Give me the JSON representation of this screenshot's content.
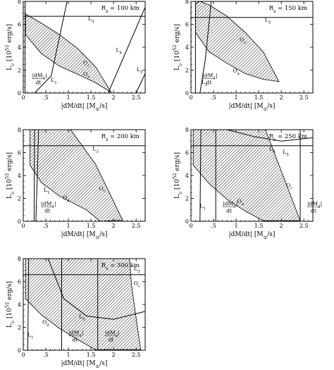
{
  "figure": {
    "ylabel": "L_ν [10^52 erg/s]",
    "xlabel": "|dM/dt| [M_⊙/s]"
  },
  "chart_data": [
    {
      "type": "area",
      "panel": "Rs=100km",
      "radius_label": "R_s = 100 km",
      "xlim": [
        0,
        2.7
      ],
      "ylim": [
        0,
        8
      ],
      "xticks": [
        0,
        0.5,
        1,
        1.5,
        2,
        2.5
      ],
      "xtick_labels": [
        "0",
        ".5",
        "1",
        "1.5",
        "2",
        "2.5"
      ],
      "yticks": [
        0,
        2,
        4,
        6,
        8
      ],
      "ytick_labels": [
        "0",
        "2",
        "4",
        "6",
        "8"
      ],
      "xlabel": "|dM/dt| [M_⊙/s]",
      "ylabel": "L_ν [10^52 erg/s]",
      "hatched_region": [
        [
          0.05,
          6.9
        ],
        [
          0.4,
          6.1
        ],
        [
          0.8,
          5.1
        ],
        [
          1.2,
          3.9
        ],
        [
          1.6,
          2.3
        ],
        [
          1.95,
          0.05
        ],
        [
          1.6,
          0.9
        ],
        [
          1.2,
          1.65
        ],
        [
          0.8,
          2.35
        ],
        [
          0.4,
          3.45
        ],
        [
          0.05,
          5.1
        ]
      ],
      "curves": [
        {
          "label": "L_3",
          "points": [
            [
              0,
              6.7
            ],
            [
              2.7,
              6.7
            ]
          ]
        },
        {
          "label": "L_1",
          "points": [
            [
              0.25,
              0
            ],
            [
              0.62,
              1.5
            ],
            [
              0.97,
              8
            ]
          ]
        },
        {
          "label": "L_4",
          "points": [
            [
              1.88,
              0
            ],
            [
              2.7,
              7.5
            ]
          ]
        },
        {
          "label": "L_5",
          "points": [
            [
              2.5,
              0
            ],
            [
              2.7,
              1.7
            ]
          ]
        },
        {
          "label": "|dM_1|/dt",
          "points": [
            [
              0.04,
              0
            ],
            [
              0.04,
              8
            ]
          ]
        }
      ],
      "labels": [
        {
          "text": "O_c",
          "x": 1.4,
          "y": 2.5
        },
        {
          "text": "O_a",
          "x": 1.4,
          "y": 1.5
        },
        {
          "text": "L_3",
          "x": 1.5,
          "y": 6.35
        },
        {
          "text": "L_1",
          "x": 0.68,
          "y": 1.0
        },
        {
          "text": "L_4",
          "x": 2.12,
          "y": 3.6
        },
        {
          "text": "L_5",
          "x": 2.58,
          "y": 1.9
        }
      ]
    },
    {
      "type": "area",
      "panel": "Rs=150km",
      "radius_label": "R_s = 150 km",
      "xlim": [
        0,
        2.7
      ],
      "ylim": [
        0,
        8
      ],
      "xticks": [
        0,
        0.5,
        1,
        1.5,
        2,
        2.5
      ],
      "xtick_labels": [
        "0",
        ".5",
        "1",
        "1.5",
        "2",
        "2.5"
      ],
      "yticks": [
        0,
        2,
        4,
        6,
        8
      ],
      "ytick_labels": [
        "0",
        "2",
        "4",
        "6",
        "8"
      ],
      "xlabel": "|dM/dt| [M_⊙/s]",
      "ylabel": "L_ν [10^52 erg/s]",
      "hatched_region": [
        [
          0.1,
          7.8
        ],
        [
          0.2,
          8
        ],
        [
          0.4,
          7.7
        ],
        [
          0.8,
          6.7
        ],
        [
          1.2,
          5.3
        ],
        [
          1.6,
          3.6
        ],
        [
          1.95,
          1.0
        ],
        [
          1.6,
          1.2
        ],
        [
          1.2,
          1.7
        ],
        [
          0.8,
          2.6
        ],
        [
          0.4,
          3.6
        ],
        [
          0.1,
          5.3
        ]
      ],
      "curves": [
        {
          "label": "L_3",
          "points": [
            [
              0,
              6.6
            ],
            [
              2.7,
              6.6
            ]
          ]
        },
        {
          "label": "L_1",
          "points": [
            [
              0.2,
              0
            ],
            [
              0.32,
              3
            ],
            [
              0.45,
              8
            ]
          ]
        },
        {
          "label": "|dM_1|/dt",
          "points": [
            [
              0.1,
              0
            ],
            [
              0.1,
              8
            ]
          ]
        }
      ],
      "labels": [
        {
          "text": "O_c",
          "x": 1.15,
          "y": 4.5
        },
        {
          "text": "O_a",
          "x": 1.0,
          "y": 1.8
        },
        {
          "text": "L_3",
          "x": 1.7,
          "y": 6.25
        },
        {
          "text": "L_1",
          "x": 0.3,
          "y": 0.8
        }
      ]
    },
    {
      "type": "area",
      "panel": "Rs=200km",
      "radius_label": "R_s = 200 km",
      "xlim": [
        0,
        2.7
      ],
      "ylim": [
        0,
        8
      ],
      "xticks": [
        0,
        0.5,
        1,
        1.5,
        2,
        2.5
      ],
      "xtick_labels": [
        "0",
        ".5",
        "1",
        "1.5",
        "2",
        "2.5"
      ],
      "yticks": [
        0,
        2,
        4,
        6,
        8
      ],
      "ytick_labels": [
        "0",
        "2",
        "4",
        "6",
        "8"
      ],
      "xlabel": "|dM/dt| [M_⊙/s]",
      "ylabel": "L_ν [10^52 erg/s]",
      "hatched_region": [
        [
          0.15,
          8
        ],
        [
          1.05,
          8
        ],
        [
          1.6,
          5.0
        ],
        [
          2.2,
          0.1
        ],
        [
          1.7,
          0
        ],
        [
          1.4,
          1.0
        ],
        [
          0.8,
          2.2
        ],
        [
          0.4,
          3.4
        ],
        [
          0.15,
          4.9
        ]
      ],
      "curves": [
        {
          "label": "L_3",
          "points": [
            [
              0,
              6.6
            ],
            [
              2.7,
              6.6
            ]
          ]
        },
        {
          "label": "L_1",
          "points": [
            [
              0.28,
              0
            ],
            [
              0.31,
              4
            ],
            [
              0.34,
              8
            ]
          ]
        },
        {
          "label": "|dM_1|/dt",
          "points": [
            [
              0.24,
              0
            ],
            [
              0.25,
              8
            ]
          ]
        }
      ],
      "labels": [
        {
          "text": "O_c",
          "x": 1.75,
          "y": 2.7
        },
        {
          "text": "O_a",
          "x": 0.95,
          "y": 1.9
        },
        {
          "text": "L_3",
          "x": 1.6,
          "y": 6.2
        },
        {
          "text": "L_1",
          "x": 0.52,
          "y": 2.6
        }
      ]
    },
    {
      "type": "area",
      "panel": "Rs=250km",
      "radius_label": "R_s = 250 km",
      "xlim": [
        0,
        2.7
      ],
      "ylim": [
        0,
        8
      ],
      "xticks": [
        0,
        0.5,
        1,
        1.5,
        2,
        2.5
      ],
      "xtick_labels": [
        "0",
        ".5",
        "1",
        "1.5",
        "2",
        "2.5"
      ],
      "yticks": [
        0,
        2,
        4,
        6,
        8
      ],
      "ytick_labels": [
        "0",
        "2",
        "4",
        "6",
        "8"
      ],
      "xlabel": "|dM/dt| [M_⊙/s]",
      "ylabel": "L_ν [10^52 erg/s]",
      "hatched_region": [
        [
          0.05,
          8
        ],
        [
          1.65,
          8
        ],
        [
          2.0,
          4.4
        ],
        [
          2.42,
          0.05
        ],
        [
          1.6,
          0.05
        ],
        [
          1.2,
          0.9
        ],
        [
          0.8,
          1.9
        ],
        [
          0.4,
          3.3
        ],
        [
          0.05,
          4.9
        ]
      ],
      "curves": [
        {
          "label": "L_3",
          "points": [
            [
              0,
              6.6
            ],
            [
              2.7,
              6.6
            ]
          ]
        },
        {
          "label": "L_1",
          "points": [
            [
              0.2,
              0
            ],
            [
              0.22,
              8
            ]
          ]
        },
        {
          "label": "|dM_1|/dt",
          "points": [
            [
              0.55,
              0
            ],
            [
              0.55,
              8
            ]
          ]
        },
        {
          "label": "|dM_2|/dt",
          "points": [
            [
              2.42,
              0
            ],
            [
              2.42,
              8
            ]
          ]
        },
        {
          "label": "L_5",
          "points": [
            [
              0.8,
              8
            ],
            [
              1.4,
              7.4
            ],
            [
              2.0,
              7.0
            ],
            [
              2.7,
              7.3
            ]
          ]
        }
      ],
      "labels": [
        {
          "text": "O_c",
          "x": 2.18,
          "y": 3.0
        },
        {
          "text": "O_a",
          "x": 1.1,
          "y": 1.6
        },
        {
          "text": "L_3",
          "x": 1.8,
          "y": 6.2
        },
        {
          "text": "L_5",
          "x": 2.1,
          "y": 5.9
        },
        {
          "text": "L_1",
          "x": 0.26,
          "y": 1.2
        }
      ]
    },
    {
      "type": "area",
      "panel": "Rs=300km",
      "radius_label": "R_s = 300 km",
      "xlim": [
        0,
        2.7
      ],
      "ylim": [
        0,
        8
      ],
      "xticks": [
        0,
        0.5,
        1,
        1.5,
        2,
        2.5
      ],
      "xtick_labels": [
        "0",
        ".5",
        "1",
        "1.5",
        "2",
        "2.5"
      ],
      "yticks": [
        0,
        2,
        4,
        6,
        8
      ],
      "ytick_labels": [
        "0",
        "2",
        "4",
        "6",
        "8"
      ],
      "xlabel": "|dM/dt| [M_⊙/s]",
      "ylabel": "L_ν [10^52 erg/s]",
      "hatched_region": [
        [
          0.05,
          8
        ],
        [
          2.35,
          8
        ],
        [
          2.4,
          5.6
        ],
        [
          2.6,
          0.05
        ],
        [
          1.6,
          0.05
        ],
        [
          1.2,
          0.95
        ],
        [
          0.8,
          1.9
        ],
        [
          0.4,
          3.1
        ],
        [
          0.05,
          4.5
        ]
      ],
      "curves": [
        {
          "label": "L_3",
          "points": [
            [
              0,
              6.6
            ],
            [
              2.7,
              6.6
            ]
          ]
        },
        {
          "label": "L_1",
          "points": [
            [
              0.1,
              0
            ],
            [
              0.12,
              8
            ]
          ]
        },
        {
          "label": "|dM_1|/dt",
          "points": [
            [
              0.85,
              0
            ],
            [
              0.85,
              8
            ]
          ]
        },
        {
          "label": "|dM_2|/dt",
          "points": [
            [
              1.65,
              0
            ],
            [
              1.65,
              8
            ]
          ]
        },
        {
          "label": "L_5",
          "points": [
            [
              0.55,
              8
            ],
            [
              0.9,
              4.5
            ],
            [
              1.4,
              3.0
            ],
            [
              2.0,
              2.7
            ],
            [
              2.7,
              3.4
            ]
          ]
        }
      ],
      "labels": [
        {
          "text": "O_c",
          "x": 2.52,
          "y": 5.7
        },
        {
          "text": "O_a",
          "x": 0.5,
          "y": 2.3
        },
        {
          "text": "L_3",
          "x": 2.52,
          "y": 7.0
        },
        {
          "text": "L_5",
          "x": 1.3,
          "y": 2.8
        },
        {
          "text": "L_1",
          "x": 0.16,
          "y": 1.2
        }
      ]
    }
  ]
}
